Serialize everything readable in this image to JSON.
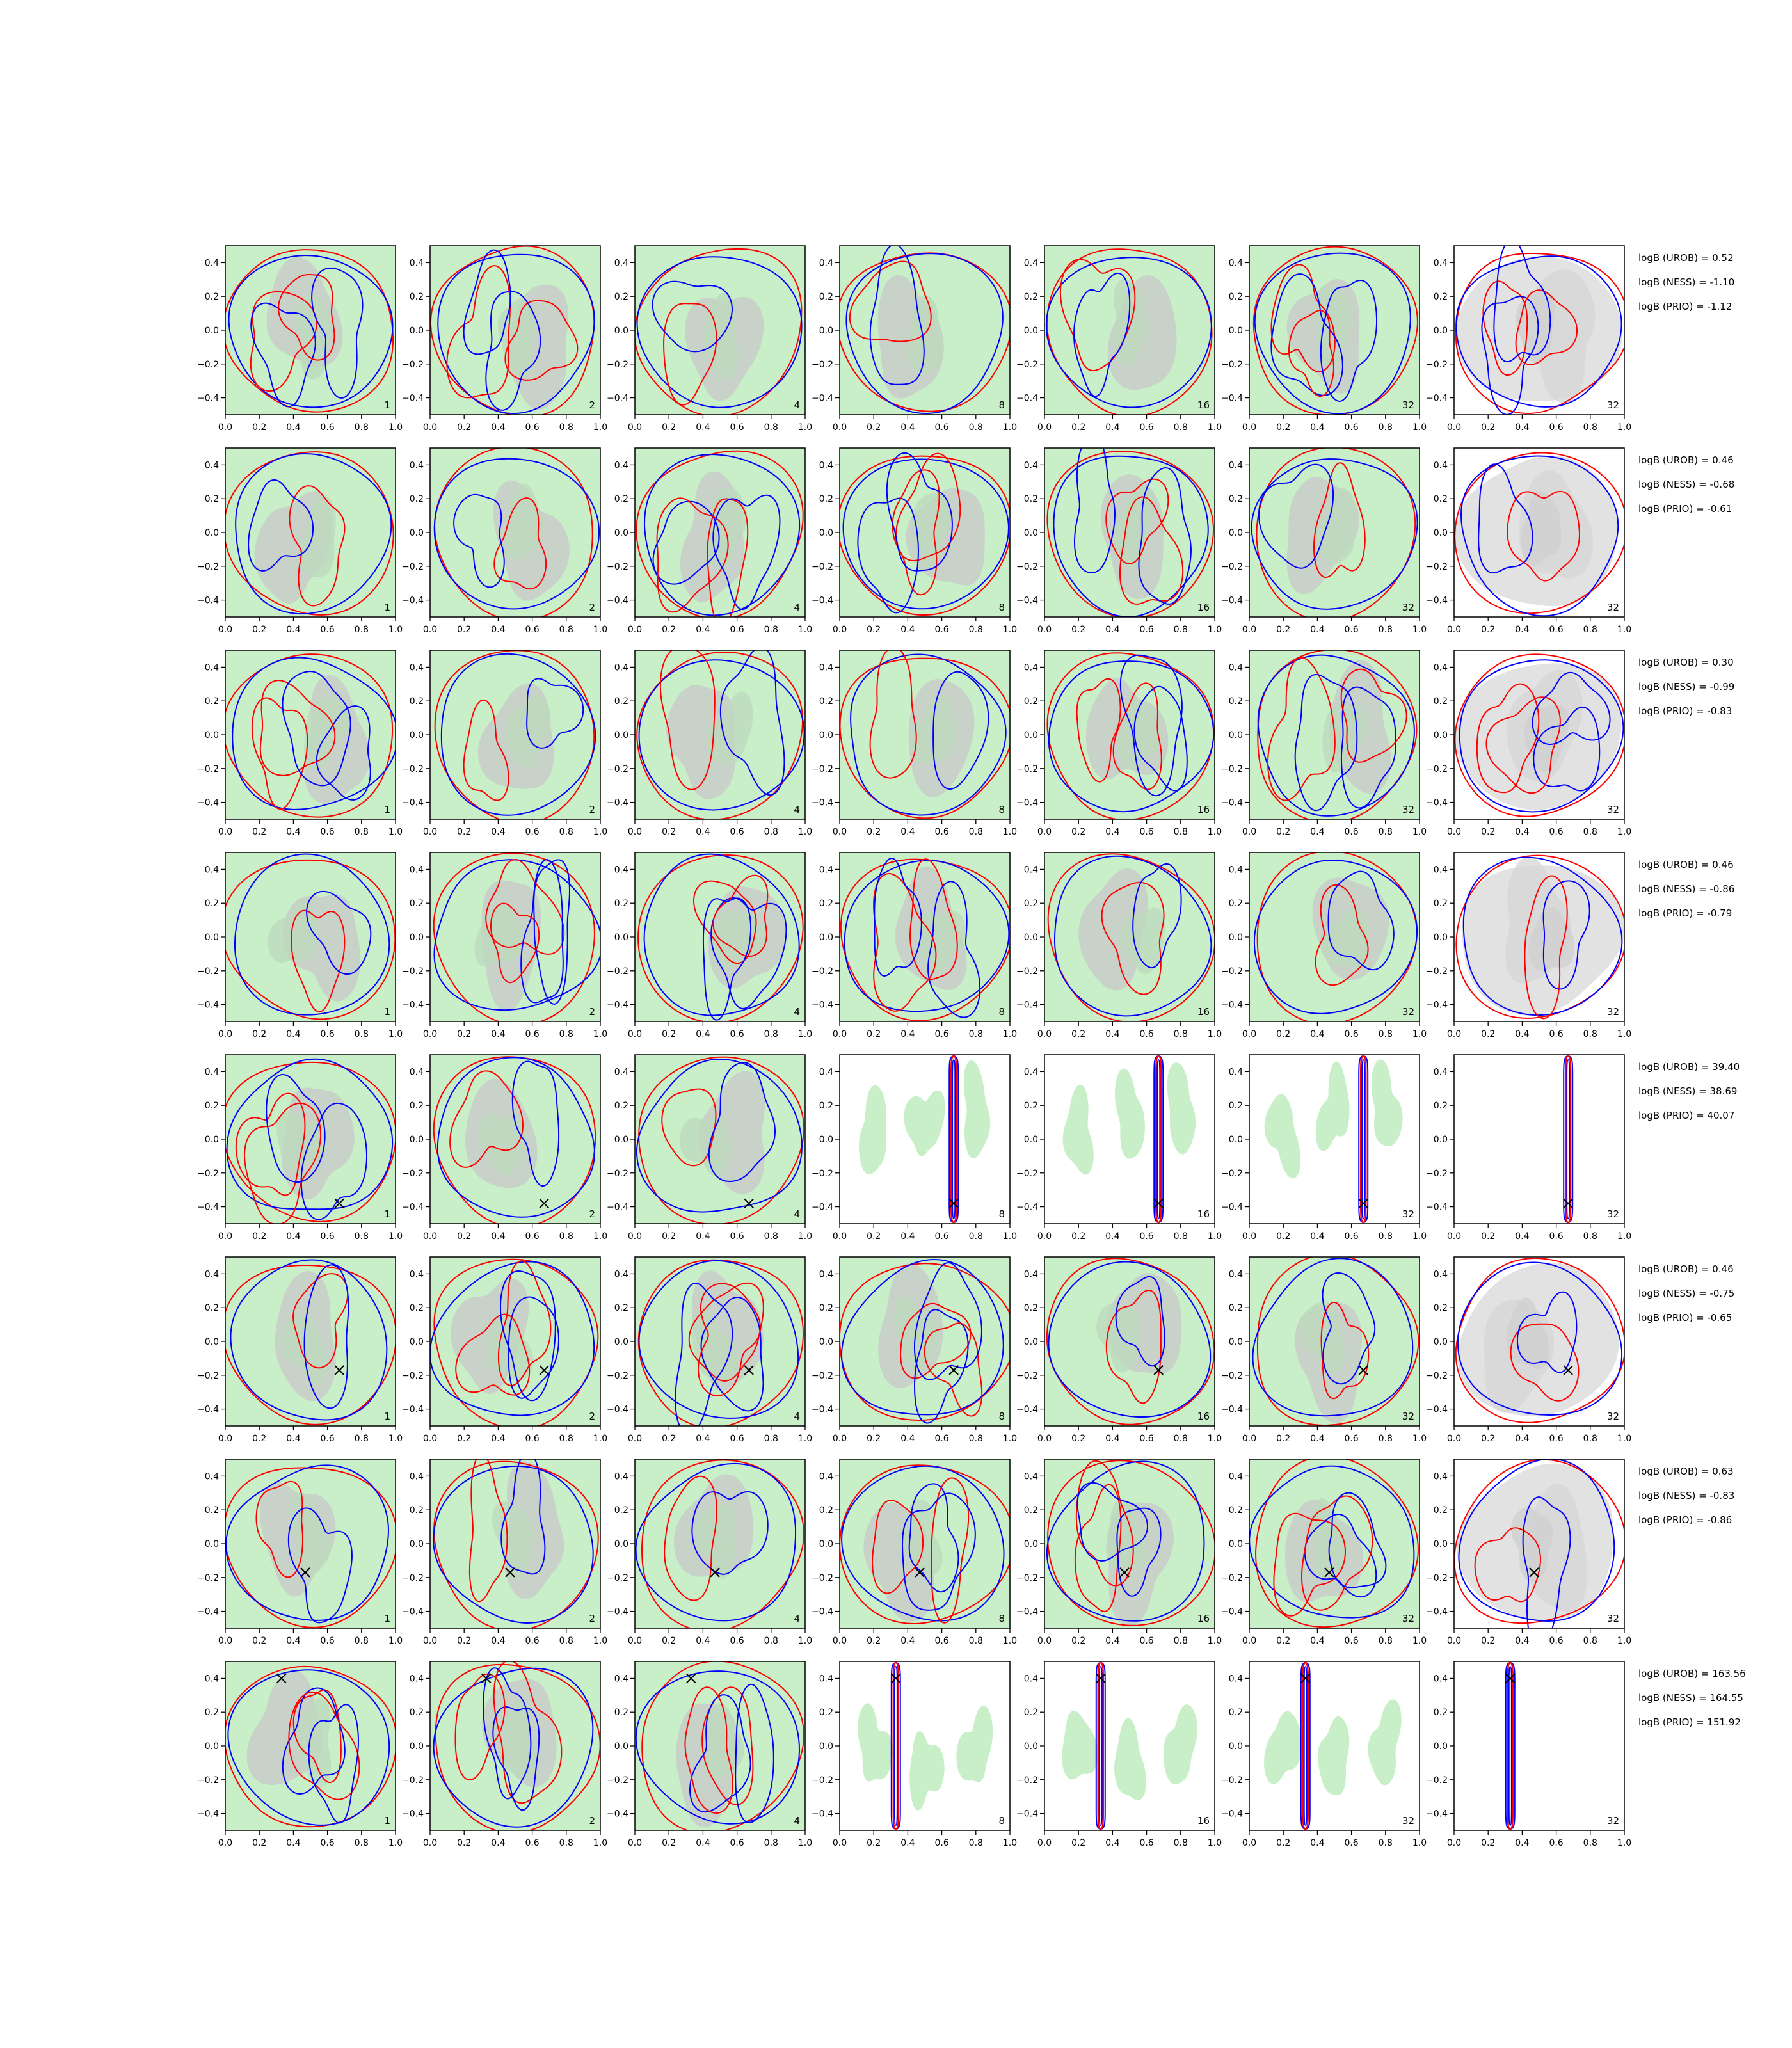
{
  "figure": {
    "row_count": 8,
    "col_count": 7,
    "xticks": [
      "0.0",
      "0.2",
      "0.4",
      "0.6",
      "0.8",
      "1.0"
    ],
    "yticks": [
      "0.4",
      "0.2",
      "0.0",
      "−0.2",
      "−0.4"
    ],
    "xlim": [
      0.0,
      1.0
    ],
    "ylim": [
      -0.5,
      0.5
    ]
  },
  "chart_data": {
    "type": "contour-grid",
    "panel_labels": [
      "1",
      "2",
      "4",
      "8",
      "16",
      "32",
      "32"
    ],
    "colors": {
      "fill_green": "#c8efc8",
      "fill_gray": "#c8c8c8",
      "last_col_fill": "#e2e2e2",
      "line_red": "#ff0000",
      "line_blue": "#0000ff",
      "marker": "#000000"
    },
    "rows": [
      {
        "uniform": true,
        "marker": null,
        "annotations": [
          "logB (UROB) = 0.52",
          "logB (NESS) = -1.10",
          "logB (PRIO) = -1.12"
        ]
      },
      {
        "uniform": true,
        "marker": null,
        "annotations": [
          "logB (UROB) = 0.46",
          "logB (NESS) = -0.68",
          "logB (PRIO) = -0.61"
        ]
      },
      {
        "uniform": true,
        "marker": null,
        "annotations": [
          "logB (UROB) = 0.30",
          "logB (NESS) = -0.99",
          "logB (PRIO) = -0.83"
        ]
      },
      {
        "uniform": true,
        "marker": null,
        "annotations": [
          "logB (UROB) = 0.46",
          "logB (NESS) = -0.86",
          "logB (PRIO) = -0.79"
        ]
      },
      {
        "uniform": false,
        "marker": [
          0.67,
          -0.38
        ],
        "annotations": [
          "logB (UROB) = 39.40",
          "logB (NESS) = 38.69",
          "logB (PRIO) = 40.07"
        ]
      },
      {
        "uniform": true,
        "marker": [
          0.67,
          -0.17
        ],
        "annotations": [
          "logB (UROB) = 0.46",
          "logB (NESS) = -0.75",
          "logB (PRIO) = -0.65"
        ]
      },
      {
        "uniform": true,
        "marker": [
          0.47,
          -0.17
        ],
        "annotations": [
          "logB (UROB) = 0.63",
          "logB (NESS) = -0.83",
          "logB (PRIO) = -0.86"
        ]
      },
      {
        "uniform": false,
        "marker": [
          0.33,
          0.4
        ],
        "annotations": [
          "logB (UROB) = 163.56",
          "logB (NESS) = 164.55",
          "logB (PRIO) = 151.92"
        ]
      }
    ]
  }
}
